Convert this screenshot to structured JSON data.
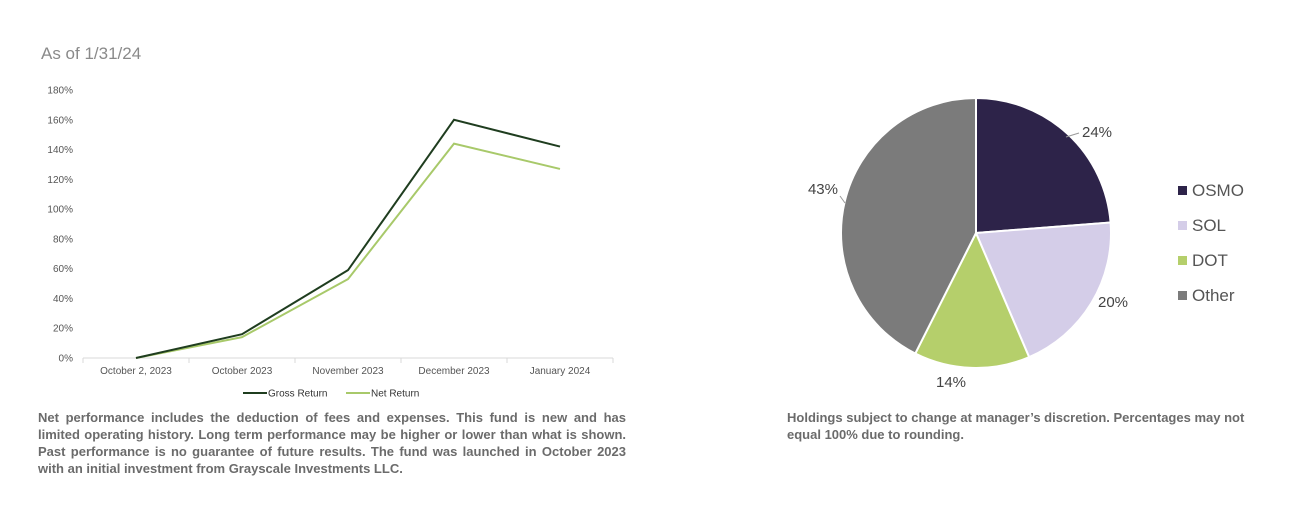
{
  "header": {
    "as_of": "As of 1/31/24"
  },
  "chart_data": [
    {
      "type": "line",
      "x": [
        "October 2, 2023",
        "October 2023",
        "November 2023",
        "December 2023",
        "January 2024"
      ],
      "ylim": [
        0,
        180
      ],
      "y_ticks": [
        "0%",
        "20%",
        "40%",
        "60%",
        "80%",
        "100%",
        "120%",
        "140%",
        "160%",
        "180%"
      ],
      "series": [
        {
          "name": "Gross Return",
          "color": "#1f3d1f",
          "values": [
            0,
            16,
            59,
            160,
            142
          ]
        },
        {
          "name": "Net Return",
          "color": "#a8c96a",
          "values": [
            0,
            14,
            53,
            144,
            127
          ]
        }
      ],
      "legend": "bottom"
    },
    {
      "type": "pie",
      "labels": [
        "OSMO",
        "SOL",
        "DOT",
        "Other"
      ],
      "values": [
        24,
        20,
        14,
        43
      ],
      "value_labels": [
        "24%",
        "20%",
        "14%",
        "43%"
      ],
      "colors": [
        "#2d2349",
        "#d4cde8",
        "#b5cf6b",
        "#7b7b7b"
      ],
      "legend": "right"
    }
  ],
  "notes": {
    "performance": "Net performance includes the deduction of fees and expenses. This fund is new and has limited operating history. Long term performance may be higher or lower than what is shown. Past performance is no guarantee of future results. The fund was launched in October 2023 with an initial investment from Grayscale Investments LLC.",
    "holdings": "Holdings subject to change at manager’s discretion.  Percentages may not equal 100% due to rounding."
  }
}
